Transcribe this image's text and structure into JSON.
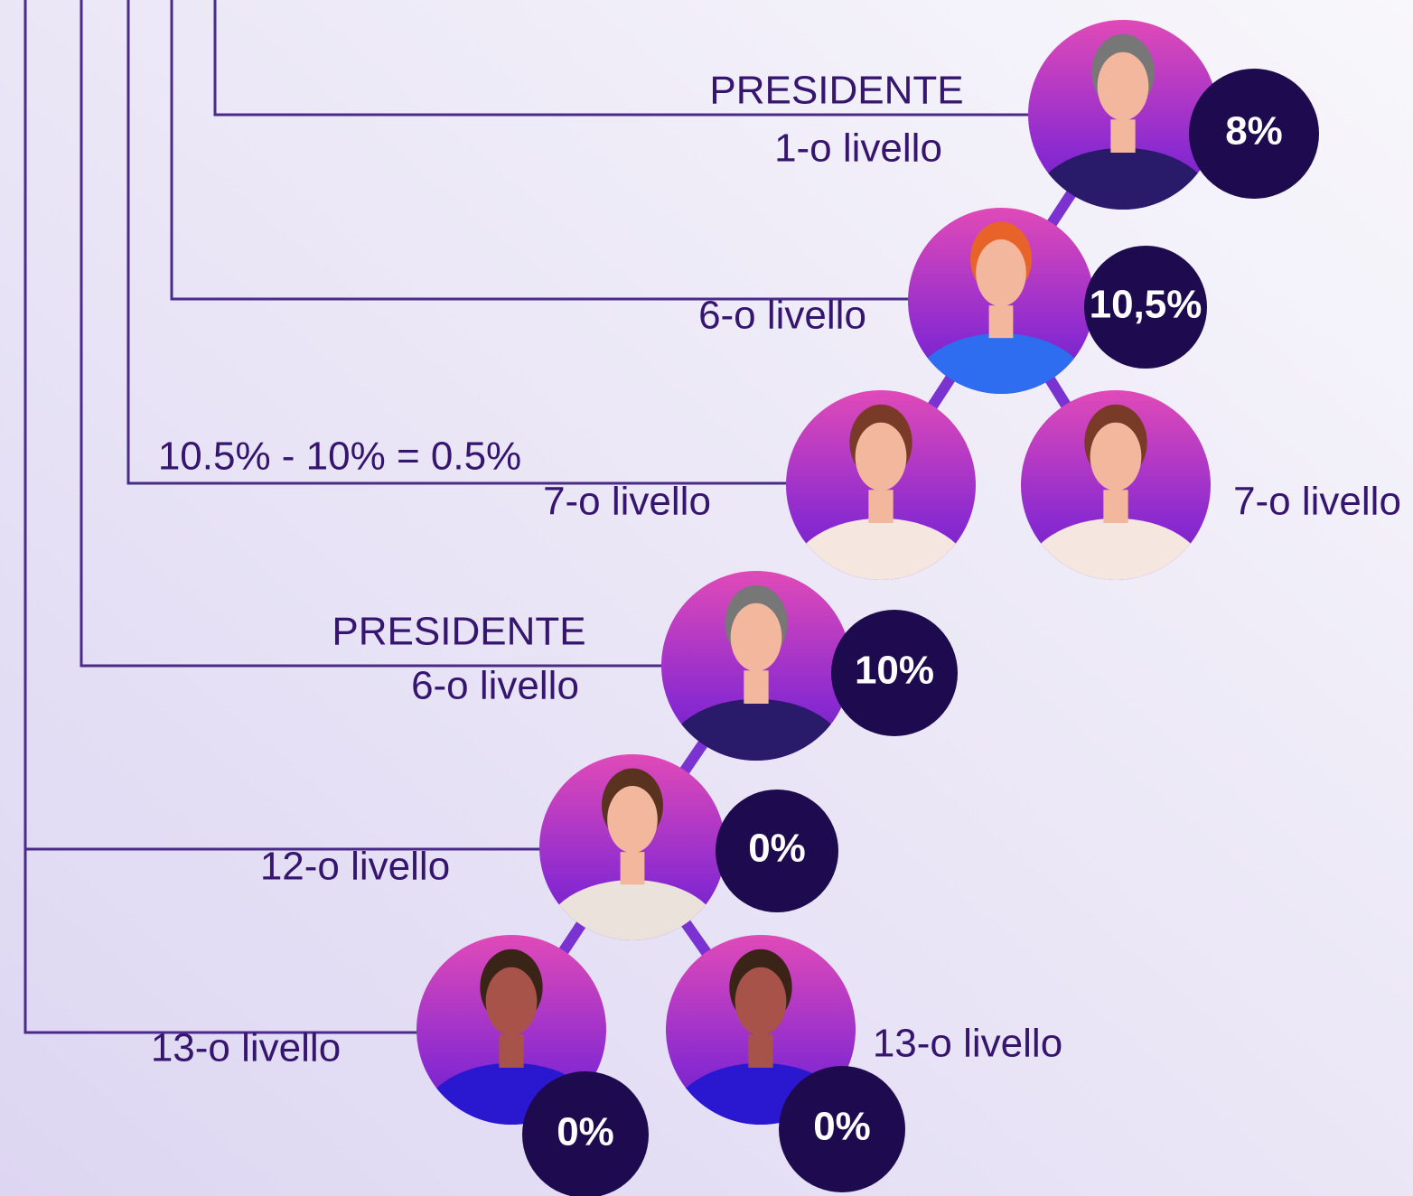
{
  "nodes": [
    {
      "title": "PRESIDENTE",
      "level": "1-o livello",
      "percent": "8%"
    },
    {
      "level": "6-o livello",
      "percent": "10,5%"
    },
    {
      "level": "7-o livello"
    },
    {
      "level": "7-o livello"
    },
    {
      "title": "PRESIDENTE",
      "level": "6-o livello",
      "percent": "10%"
    },
    {
      "level": "12-o livello",
      "percent": "0%"
    },
    {
      "level": "13-o livello",
      "percent": "0%"
    },
    {
      "level": "13-o livello",
      "percent": "0%"
    }
  ],
  "annotation": "10.5% - 10% = 0.5%"
}
